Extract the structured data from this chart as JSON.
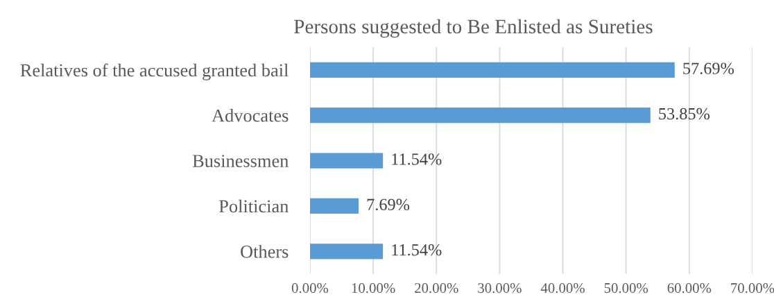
{
  "chart_data": {
    "type": "bar",
    "orientation": "horizontal",
    "title": "Persons suggested to Be Enlisted as Sureties",
    "categories": [
      "Relatives of the accused granted bail",
      "Advocates",
      "Businessmen",
      "Politician",
      "Others"
    ],
    "values": [
      57.69,
      53.85,
      11.54,
      7.69,
      11.54
    ],
    "color": "#5b9bd5",
    "value_labels": [
      "57.69%",
      "53.85%",
      "11.54%",
      "7.69%",
      "11.54%"
    ],
    "xlim": [
      0,
      70
    ],
    "xticks": [
      {
        "value": 0,
        "label": "0.00%"
      },
      {
        "value": 10,
        "label": "10.00%"
      },
      {
        "value": 20,
        "label": "20.00%"
      },
      {
        "value": 30,
        "label": "30.00%"
      },
      {
        "value": 40,
        "label": "40.00%"
      },
      {
        "value": 50,
        "label": "50.00%"
      },
      {
        "value": 60,
        "label": "60.00%"
      },
      {
        "value": 70,
        "label": "70.00%"
      }
    ],
    "grid": "x",
    "legend": false
  }
}
